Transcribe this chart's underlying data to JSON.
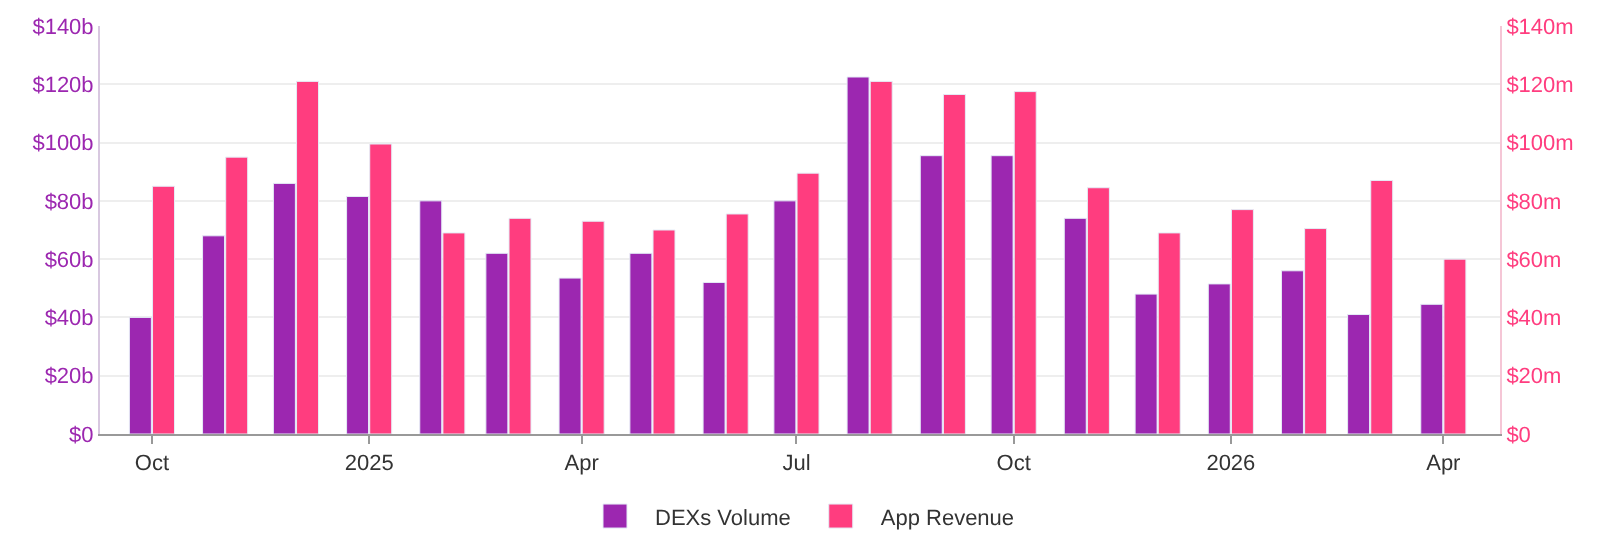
{
  "chart_data": {
    "type": "bar",
    "x": [
      "2024-10",
      "2024-11",
      "2024-12",
      "2025-01",
      "2025-02",
      "2025-03",
      "2025-04",
      "2025-05",
      "2025-06",
      "2025-07",
      "2025-08",
      "2025-09",
      "2025-10",
      "2025-11",
      "2025-12",
      "2026-01",
      "2026-02",
      "2026-03",
      "2026-04"
    ],
    "series": [
      {
        "name": "DEXs Volume",
        "color": "#9c27b0",
        "values": [
          40,
          68,
          86,
          81.5,
          80,
          62,
          53.5,
          62,
          52,
          80,
          122.5,
          95.5,
          95.5,
          74,
          48,
          51.5,
          56,
          41,
          44.5
        ]
      },
      {
        "name": "App Revenue",
        "color": "#ff3d7f",
        "axis": "y2",
        "values": [
          85,
          95,
          121,
          99.5,
          69,
          74,
          73,
          70,
          75.5,
          89.5,
          121,
          116.5,
          117.5,
          84.5,
          69,
          77,
          70.5,
          87,
          60
        ]
      }
    ],
    "xlim": [
      "2024-09-09",
      "2026-04-25"
    ],
    "xticks": [
      {
        "value": "2024-10",
        "label": "Oct"
      },
      {
        "value": "2025-01",
        "label": "2025"
      },
      {
        "value": "2025-04",
        "label": "Apr"
      },
      {
        "value": "2025-07",
        "label": "Jul"
      },
      {
        "value": "2025-10",
        "label": "Oct"
      },
      {
        "value": "2026-01",
        "label": "2026"
      },
      {
        "value": "2026-04",
        "label": "Apr"
      }
    ],
    "ylim": [
      0,
      140
    ],
    "yticks": [
      {
        "value": 0,
        "label": "$0"
      },
      {
        "value": 20,
        "label": "$20b"
      },
      {
        "value": 40,
        "label": "$40b"
      },
      {
        "value": 60,
        "label": "$60b"
      },
      {
        "value": 80,
        "label": "$80b"
      },
      {
        "value": 100,
        "label": "$100b"
      },
      {
        "value": 120,
        "label": "$120b"
      },
      {
        "value": 140,
        "label": "$140b"
      }
    ],
    "y2lim": [
      0,
      140
    ],
    "y2ticks": [
      {
        "value": 0,
        "label": "$0"
      },
      {
        "value": 20,
        "label": "$20m"
      },
      {
        "value": 40,
        "label": "$40m"
      },
      {
        "value": 60,
        "label": "$60m"
      },
      {
        "value": 80,
        "label": "$80m"
      },
      {
        "value": 100,
        "label": "$100m"
      },
      {
        "value": 120,
        "label": "$120m"
      },
      {
        "value": 140,
        "label": "$140m"
      }
    ],
    "grid": "y",
    "legend": "bottom"
  }
}
